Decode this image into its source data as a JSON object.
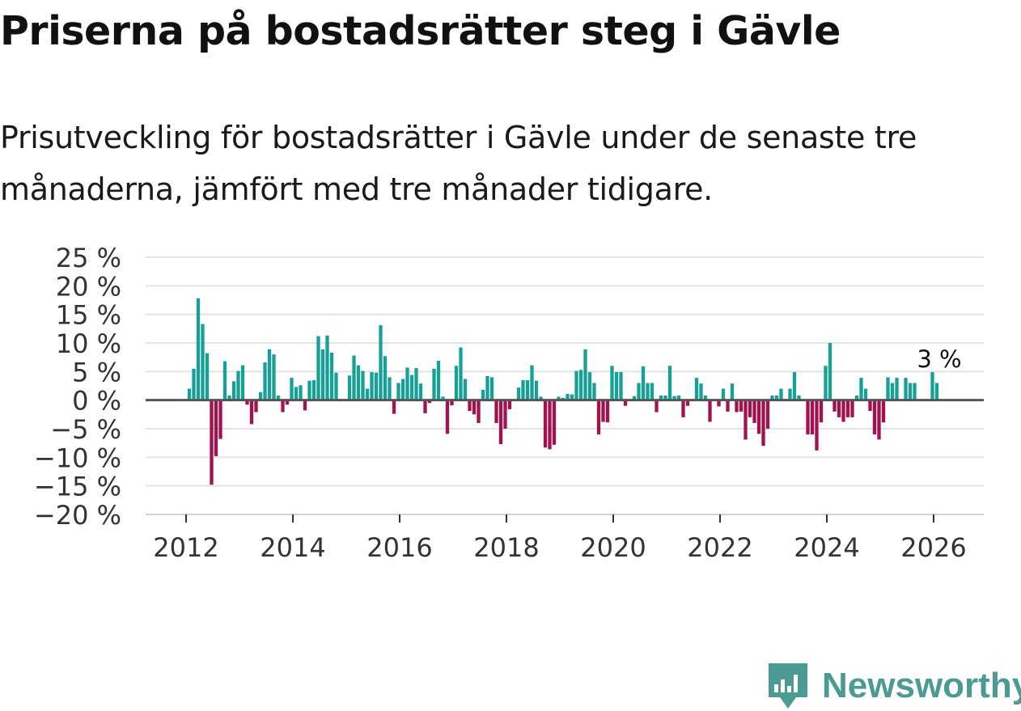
{
  "header": {
    "title": "Priserna på bostadsrätter steg i Gävle",
    "subtitle": "Prisutveckling för bostadsrätter i Gävle under de senaste tre månaderna, jämfört med tre månader tidigare."
  },
  "brand": {
    "name": "Newsworthy",
    "icon": "newsworthy-logo-icon",
    "color": "#4c9b93"
  },
  "colors": {
    "positive": "#16a096",
    "negative": "#a3124f",
    "zero_line": "#555555",
    "grid": "#e3e3e3"
  },
  "chart_data": {
    "type": "bar",
    "title": "Priserna på bostadsrätter steg i Gävle",
    "xlabel": "",
    "ylabel": "",
    "ylim": [
      -20,
      25
    ],
    "yticks": [
      25,
      20,
      15,
      10,
      5,
      0,
      -5,
      -10,
      -15,
      -20
    ],
    "ytick_labels": [
      "25 %",
      "20 %",
      "15 %",
      "10 %",
      "5 %",
      "0 %",
      "−5 %",
      "−10 %",
      "−15 %",
      "−20 %"
    ],
    "xticks": [
      2012,
      2014,
      2016,
      2018,
      2020,
      2022,
      2024,
      2026
    ],
    "xtick_labels": [
      "2012",
      "2014",
      "2016",
      "2018",
      "2020",
      "2022",
      "2024",
      "2026"
    ],
    "start": "2012-01",
    "series": [
      {
        "name": "Prisutveckling",
        "values": [
          2,
          5.5,
          17.8,
          13.3,
          8.2,
          -14.8,
          -9.8,
          -6.8,
          6.8,
          0.8,
          3.3,
          5.1,
          6.1,
          -0.8,
          -4.2,
          -2.1,
          1.4,
          6.6,
          8.9,
          8.0,
          0.8,
          -2.1,
          -0.8,
          3.9,
          2.3,
          2.6,
          -1.8,
          3.4,
          3.5,
          11.2,
          8.9,
          11.3,
          8.3,
          4.8,
          0,
          0,
          4.3,
          7.8,
          6.1,
          5.1,
          2.0,
          4.9,
          4.8,
          13.1,
          7.7,
          4.0,
          -2.4,
          3.0,
          3.7,
          5.7,
          4.4,
          5.6,
          2.9,
          -2.3,
          -0.5,
          5.5,
          6.9,
          0.6,
          -5.9,
          -0.9,
          6.0,
          9.2,
          3.7,
          -1.9,
          -2.5,
          -4.0,
          1.8,
          4.2,
          4.0,
          -4.0,
          -7.7,
          -5.0,
          -1.6,
          0,
          2.2,
          3.5,
          3.5,
          6.1,
          3.4,
          0.6,
          -8.3,
          -8.6,
          -7.8,
          0.6,
          0.4,
          1.1,
          1.0,
          5.1,
          5.3,
          8.9,
          4.9,
          3.0,
          -6.0,
          -3.8,
          -3.9,
          6.0,
          4.9,
          4.9,
          -1.0,
          0,
          0.7,
          3.0,
          5.9,
          3.0,
          3.0,
          -2.1,
          0.8,
          0.8,
          6.0,
          0.7,
          0.8,
          -3.0,
          -1.0,
          0,
          3.9,
          2.9,
          0.8,
          -3.8,
          0,
          -1.1,
          2.0,
          -2.0,
          2.9,
          -2.1,
          -2.0,
          -6.9,
          -3.0,
          -4.0,
          -5.9,
          -8.0,
          -5.0,
          0.8,
          0.8,
          2.0,
          0,
          2.0,
          4.9,
          0.8,
          0,
          -6.0,
          -6.0,
          -8.8,
          -3.9,
          6.0,
          10.0,
          -2.0,
          -3.0,
          -3.8,
          -3.0,
          -3.0,
          0.8,
          3.9,
          2.0,
          -1.9,
          -6.0,
          -6.9,
          -3.9,
          4.0,
          3.0,
          3.9,
          0,
          3.9,
          3.0,
          3.0,
          0,
          0,
          0,
          4.9,
          3.0
        ]
      }
    ],
    "annotation": {
      "label": "3 %",
      "target": "last"
    }
  }
}
